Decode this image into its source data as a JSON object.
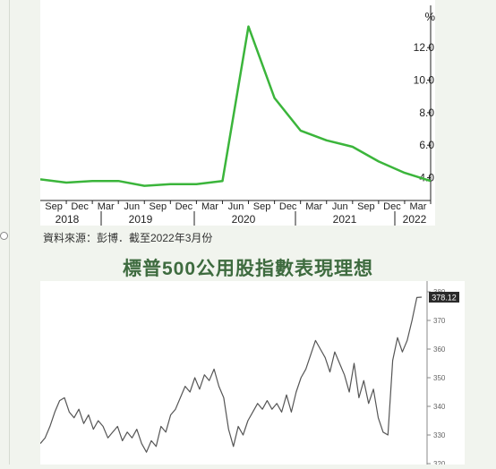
{
  "source_note": "資料來源：彭博．截至2022年3月份",
  "page_title": "標普500公用股指數表現理想",
  "colors": {
    "line1": "#3bb53b",
    "line2": "#555555",
    "title": "#3e6b3f"
  },
  "chart_data": [
    {
      "type": "line",
      "title": "",
      "ylabel": "%",
      "ylim": [
        2.6,
        14.6
      ],
      "yticks": [
        "4.0",
        "6.0",
        "8.0",
        "10.0",
        "12.0"
      ],
      "x_month_labels": [
        "Sep",
        "Dec",
        "Mar",
        "Jun",
        "Sep",
        "Dec",
        "Mar",
        "Jun",
        "Sep",
        "Dec",
        "Mar",
        "Jun",
        "Sep",
        "Dec",
        "Mar"
      ],
      "x_year_labels": [
        "2018",
        "2019",
        "2020",
        "2021",
        "2022"
      ],
      "series": [
        {
          "values": [
            3.9,
            3.7,
            3.8,
            3.8,
            3.5,
            3.6,
            3.6,
            3.8,
            13.3,
            8.9,
            6.9,
            6.3,
            5.9,
            5.0,
            4.3,
            3.8
          ]
        }
      ]
    },
    {
      "type": "line",
      "title": "",
      "ylim": [
        320,
        380
      ],
      "yticks": [
        "320",
        "330",
        "340",
        "350",
        "360",
        "370",
        "380"
      ],
      "last_value_label": "378.12",
      "series": [
        {
          "values": [
            327,
            329,
            333,
            338,
            342,
            343,
            338,
            336,
            339,
            334,
            337,
            332,
            335,
            333,
            329,
            331,
            333,
            328,
            331,
            329,
            332,
            327,
            324,
            328,
            326,
            333,
            331,
            337,
            339,
            343,
            347,
            345,
            350,
            346,
            351,
            349,
            353,
            347,
            343,
            332,
            326,
            333,
            330,
            335,
            338,
            341,
            339,
            342,
            339,
            341,
            338,
            344,
            338,
            345,
            350,
            353,
            358,
            363,
            360,
            357,
            352,
            359,
            355,
            351,
            345,
            355,
            343,
            349,
            341,
            346,
            336,
            331,
            330,
            356,
            364,
            359,
            363,
            370,
            378,
            378.12
          ]
        }
      ]
    }
  ]
}
